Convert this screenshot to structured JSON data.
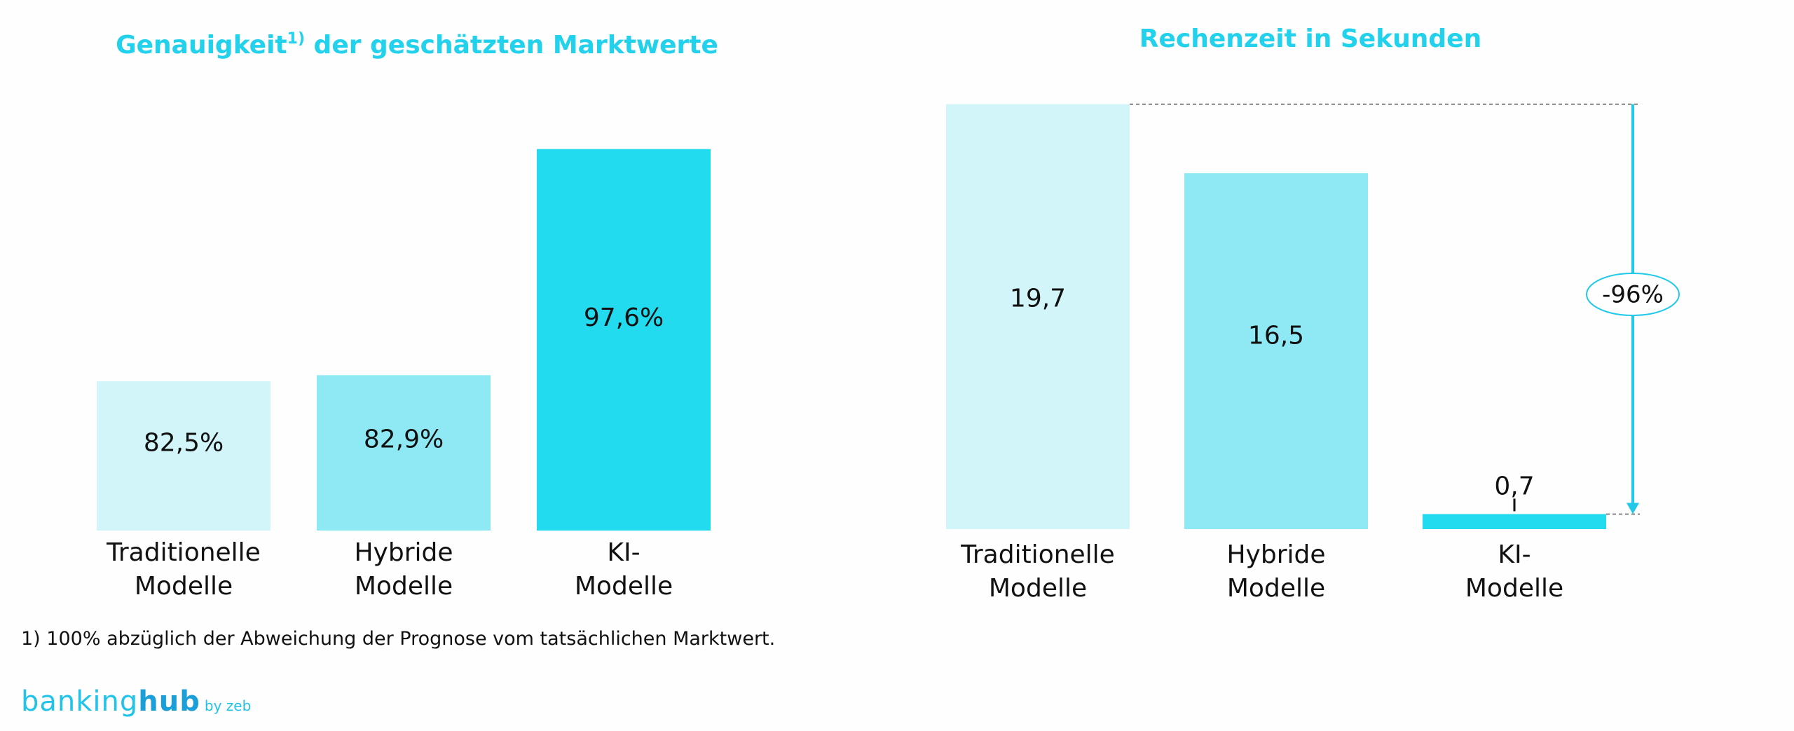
{
  "chart_data": [
    {
      "type": "bar",
      "title": "Genauigkeit",
      "title_superscript": "1)",
      "title_rest": " der geschätzten Marktwerte",
      "categories": [
        [
          "Traditionelle",
          "Modelle"
        ],
        [
          "Hybride",
          "Modelle"
        ],
        [
          "KI-",
          "Modelle"
        ]
      ],
      "values": [
        82.5,
        82.9,
        97.6
      ],
      "value_labels": [
        "82,5%",
        "82,9%",
        "97,6%"
      ],
      "colors": [
        "#d2f5fa",
        "#8fe9f4",
        "#22dbef"
      ],
      "ylim": [
        72.8,
        100
      ]
    },
    {
      "type": "bar",
      "title": "Rechenzeit in Sekunden",
      "categories": [
        [
          "Traditionelle",
          "Modelle"
        ],
        [
          "Hybride",
          "Modelle"
        ],
        [
          "KI-",
          "Modelle"
        ]
      ],
      "values": [
        19.7,
        16.5,
        0.7
      ],
      "value_labels": [
        "19,7",
        "16,5",
        "0,7"
      ],
      "colors": [
        "#d2f5fa",
        "#8fe9f4",
        "#22dbef"
      ],
      "ylim": [
        0,
        20.5
      ],
      "annotation": "-96%"
    }
  ],
  "footnote": "1) 100% abzüglich der Abweichung der Prognose vom tatsächlichen Marktwert.",
  "logo": {
    "part1": "banking",
    "part2": "hub",
    "suffix": "by zeb"
  },
  "colors": {
    "accent": "#22d1ec",
    "arrow": "#22c9e8"
  }
}
